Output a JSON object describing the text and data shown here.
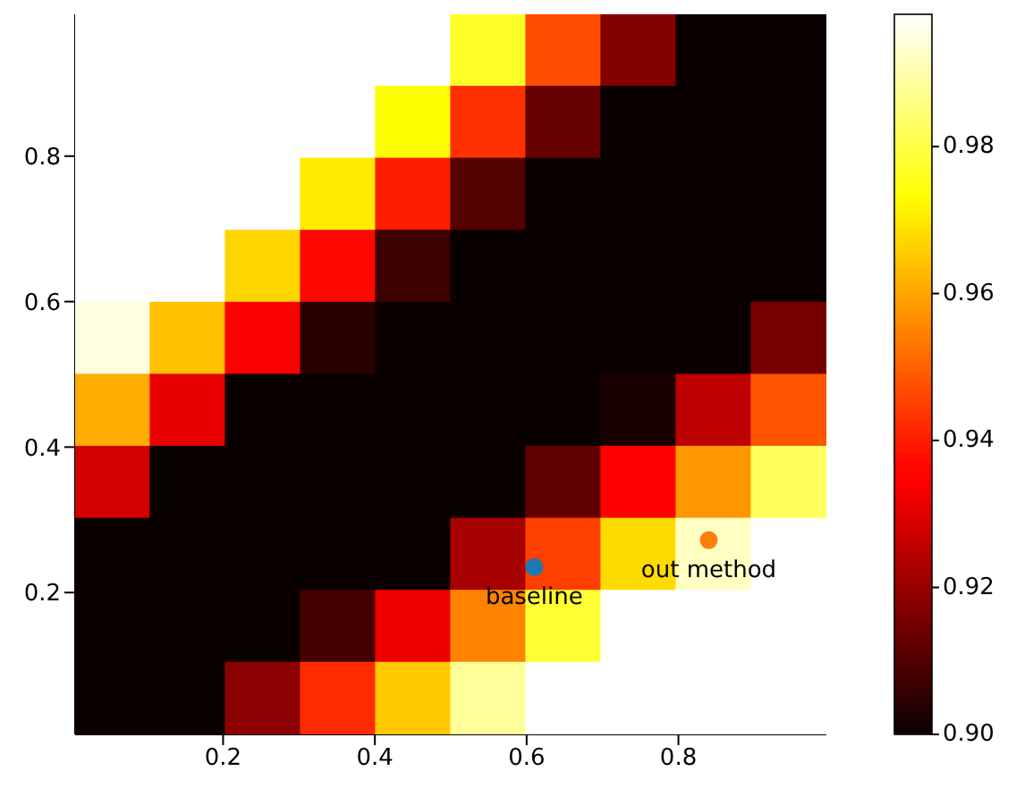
{
  "chart_data": {
    "type": "heatmap",
    "xlim": [
      0.005,
      0.995
    ],
    "ylim": [
      0.005,
      0.995
    ],
    "xticks": [
      0.2,
      0.4,
      0.6,
      0.8
    ],
    "yticks": [
      0.2,
      0.4,
      0.6,
      0.8
    ],
    "clim": [
      0.9,
      0.998
    ],
    "cticks": [
      {
        "value": 0.9,
        "label": "0.90"
      },
      {
        "value": 0.92,
        "label": "0.92"
      },
      {
        "value": 0.94,
        "label": "0.94"
      },
      {
        "value": 0.96,
        "label": "0.96"
      },
      {
        "value": 0.98,
        "label": "0.98"
      }
    ],
    "cells": [
      [
        0.998,
        0.998,
        0.998,
        0.998,
        0.998,
        0.977,
        0.947,
        0.917,
        0.9,
        0.9
      ],
      [
        0.998,
        0.998,
        0.998,
        0.998,
        0.973,
        0.943,
        0.913,
        0.9,
        0.9,
        0.9
      ],
      [
        0.998,
        0.998,
        0.998,
        0.97,
        0.94,
        0.91,
        0.9,
        0.9,
        0.9,
        0.9
      ],
      [
        0.998,
        0.998,
        0.967,
        0.937,
        0.907,
        0.9,
        0.9,
        0.9,
        0.9,
        0.9
      ],
      [
        0.995,
        0.964,
        0.934,
        0.904,
        0.9,
        0.9,
        0.9,
        0.9,
        0.9,
        0.915
      ],
      [
        0.961,
        0.931,
        0.9,
        0.9,
        0.9,
        0.9,
        0.9,
        0.902,
        0.925,
        0.948
      ],
      [
        0.928,
        0.9,
        0.9,
        0.9,
        0.9,
        0.9,
        0.912,
        0.935,
        0.958,
        0.982
      ],
      [
        0.9,
        0.9,
        0.9,
        0.9,
        0.9,
        0.922,
        0.945,
        0.968,
        0.992,
        0.998
      ],
      [
        0.9,
        0.9,
        0.9,
        0.908,
        0.932,
        0.955,
        0.978,
        0.998,
        0.998,
        0.998
      ],
      [
        0.9,
        0.9,
        0.918,
        0.942,
        0.965,
        0.988,
        0.998,
        0.998,
        0.998,
        0.998
      ]
    ],
    "series": [
      {
        "name": "baseline",
        "type": "scatter",
        "color": "#1f77b4",
        "x": [
          0.61
        ],
        "values": [
          0.235
        ]
      },
      {
        "name": "out method",
        "type": "scatter",
        "color": "#ff7f0e",
        "x": [
          0.84
        ],
        "values": [
          0.272
        ]
      }
    ]
  }
}
